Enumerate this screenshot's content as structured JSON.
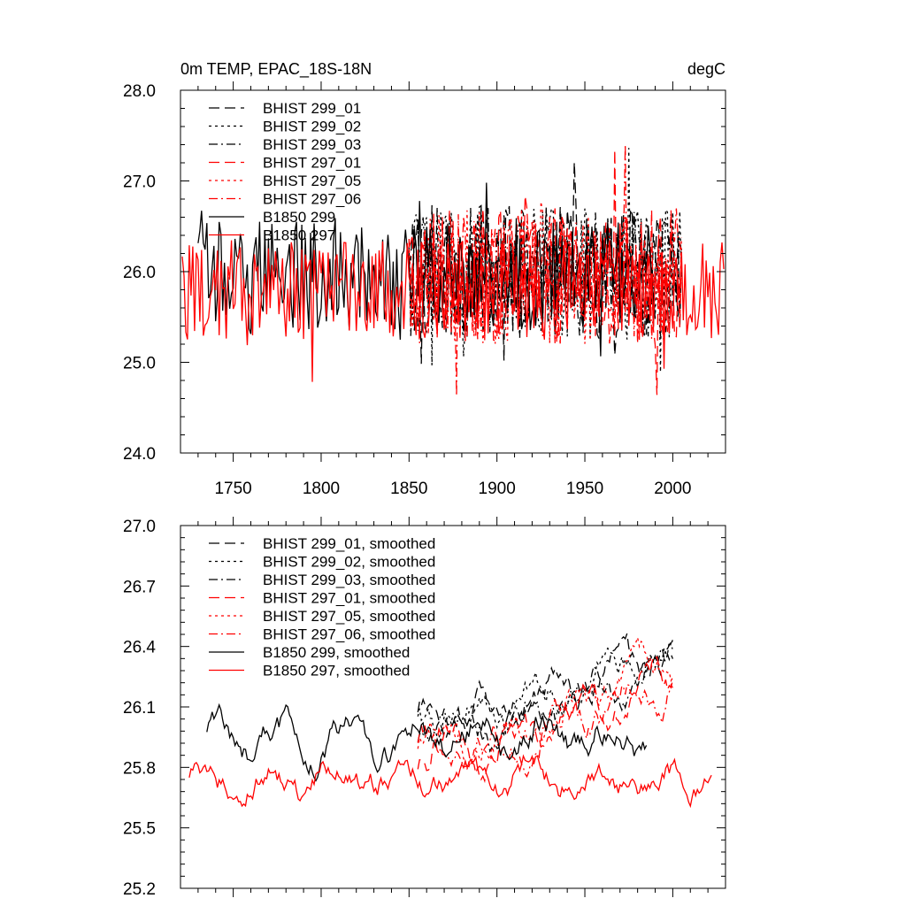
{
  "chart_data": [
    {
      "type": "line",
      "title": "0m TEMP, EPAC_18S-18N",
      "units": "degC",
      "xlabel": "",
      "ylabel": "",
      "xlim": [
        1720,
        2030
      ],
      "ylim": [
        24.0,
        28.0
      ],
      "x_ticks": [
        1750,
        1800,
        1850,
        1900,
        1950,
        2000
      ],
      "y_ticks": [
        24.0,
        25.0,
        26.0,
        27.0,
        28.0
      ],
      "x_tick_labels": [
        "1750",
        "1800",
        "1850",
        "1900",
        "1950",
        "2000"
      ],
      "y_tick_labels": [
        "24.0",
        "25.0",
        "26.0",
        "27.0",
        "28.0"
      ],
      "legend_position": "top-left",
      "series": [
        {
          "name": "BHIST 299_01",
          "color": "#000000",
          "dash": "long-dash",
          "x_range": [
            1850,
            2005
          ],
          "mean": 26.0,
          "amplitude": 0.75
        },
        {
          "name": "BHIST 299_02",
          "color": "#000000",
          "dash": "dot",
          "x_range": [
            1850,
            2005
          ],
          "mean": 26.0,
          "amplitude": 0.75
        },
        {
          "name": "BHIST 299_03",
          "color": "#000000",
          "dash": "dash-dot",
          "x_range": [
            1850,
            2005
          ],
          "mean": 26.0,
          "amplitude": 0.75
        },
        {
          "name": "BHIST 297_01",
          "color": "#ff0000",
          "dash": "long-dash",
          "x_range": [
            1850,
            2005
          ],
          "mean": 25.95,
          "amplitude": 0.75
        },
        {
          "name": "BHIST 297_05",
          "color": "#ff0000",
          "dash": "dot",
          "x_range": [
            1850,
            2005
          ],
          "mean": 25.95,
          "amplitude": 0.75
        },
        {
          "name": "BHIST 297_06",
          "color": "#ff0000",
          "dash": "dash-dot",
          "x_range": [
            1850,
            2005
          ],
          "mean": 25.95,
          "amplitude": 0.75
        },
        {
          "name": "B1850 299",
          "color": "#000000",
          "dash": "solid",
          "x_range": [
            1730,
            1990
          ],
          "mean": 25.95,
          "amplitude": 0.6
        },
        {
          "name": "B1850 297",
          "color": "#ff0000",
          "dash": "solid",
          "x_range": [
            1721,
            2029
          ],
          "mean": 25.8,
          "amplitude": 0.55
        }
      ]
    },
    {
      "type": "line",
      "title": "",
      "xlabel": "",
      "ylabel": "",
      "xlim": [
        1720,
        2030
      ],
      "ylim": [
        25.2,
        27.0
      ],
      "x_ticks": [
        1750,
        1800,
        1850,
        1900,
        1950,
        2000
      ],
      "y_ticks": [
        25.2,
        25.5,
        25.8,
        26.1,
        26.4,
        26.7,
        27.0
      ],
      "y_tick_labels": [
        "25.2",
        "25.5",
        "25.8",
        "26.1",
        "26.4",
        "26.7",
        "27.0"
      ],
      "legend_position": "top-left",
      "series": [
        {
          "name": "BHIST 299_01, smoothed",
          "color": "#000000",
          "dash": "long-dash",
          "x_range": [
            1855,
            2000
          ],
          "mean": 26.05,
          "amplitude": 0.2,
          "trend": 0.35
        },
        {
          "name": "BHIST 299_02, smoothed",
          "color": "#000000",
          "dash": "dot",
          "x_range": [
            1855,
            2000
          ],
          "mean": 26.05,
          "amplitude": 0.2,
          "trend": 0.35
        },
        {
          "name": "BHIST 299_03, smoothed",
          "color": "#000000",
          "dash": "dash-dot",
          "x_range": [
            1855,
            2000
          ],
          "mean": 26.0,
          "amplitude": 0.2,
          "trend": 0.3
        },
        {
          "name": "BHIST 297_01, smoothed",
          "color": "#ff0000",
          "dash": "long-dash",
          "x_range": [
            1855,
            2000
          ],
          "mean": 25.9,
          "amplitude": 0.2,
          "trend": 0.35
        },
        {
          "name": "BHIST 297_05, smoothed",
          "color": "#ff0000",
          "dash": "dot",
          "x_range": [
            1855,
            2000
          ],
          "mean": 25.95,
          "amplitude": 0.2,
          "trend": 0.35
        },
        {
          "name": "BHIST 297_06, smoothed",
          "color": "#ff0000",
          "dash": "dash-dot",
          "x_range": [
            1855,
            2000
          ],
          "mean": 25.9,
          "amplitude": 0.2,
          "trend": 0.3
        },
        {
          "name": "B1850 299, smoothed",
          "color": "#000000",
          "dash": "solid",
          "x_range": [
            1735,
            1985
          ],
          "mean": 25.95,
          "amplitude": 0.2,
          "trend": 0
        },
        {
          "name": "B1850 297, smoothed",
          "color": "#ff0000",
          "dash": "solid",
          "x_range": [
            1725,
            2022
          ],
          "mean": 25.75,
          "amplitude": 0.18,
          "trend": 0
        }
      ]
    }
  ]
}
